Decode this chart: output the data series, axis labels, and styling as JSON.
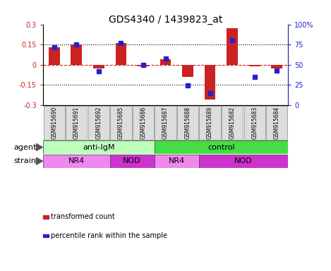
{
  "title": "GDS4340 / 1439823_at",
  "samples": [
    "GSM915690",
    "GSM915691",
    "GSM915692",
    "GSM915685",
    "GSM915686",
    "GSM915687",
    "GSM915688",
    "GSM915689",
    "GSM915682",
    "GSM915683",
    "GSM915684"
  ],
  "red_values": [
    0.13,
    0.15,
    -0.03,
    0.16,
    -0.01,
    0.04,
    -0.09,
    -0.26,
    0.27,
    -0.01,
    -0.03
  ],
  "blue_values": [
    72,
    75,
    42,
    77,
    50,
    58,
    24,
    15,
    80,
    35,
    43
  ],
  "ylim": [
    -0.3,
    0.3
  ],
  "y2lim": [
    0,
    100
  ],
  "yticks": [
    -0.3,
    -0.15,
    0,
    0.15,
    0.3
  ],
  "y2ticks": [
    0,
    25,
    50,
    75,
    100
  ],
  "ytick_labels": [
    "-0.3",
    "-0.15",
    "0",
    "0.15",
    "0.3"
  ],
  "y2tick_labels": [
    "0",
    "25",
    "50",
    "75",
    "100%"
  ],
  "red_color": "#cc2222",
  "blue_color": "#2222cc",
  "agent_groups": [
    {
      "label": "anti-IgM",
      "start": 0,
      "end": 5,
      "color": "#bbffbb"
    },
    {
      "label": "control",
      "start": 5,
      "end": 11,
      "color": "#44dd44"
    }
  ],
  "strain_groups": [
    {
      "label": "NR4",
      "start": 0,
      "end": 3,
      "color": "#ee88ee"
    },
    {
      "label": "NOD",
      "start": 3,
      "end": 5,
      "color": "#cc33cc"
    },
    {
      "label": "NR4",
      "start": 5,
      "end": 7,
      "color": "#ee88ee"
    },
    {
      "label": "NOD",
      "start": 7,
      "end": 11,
      "color": "#cc33cc"
    }
  ],
  "legend_items": [
    {
      "label": "transformed count",
      "color": "#cc2222"
    },
    {
      "label": "percentile rank within the sample",
      "color": "#2222cc"
    }
  ],
  "agent_label": "agent",
  "strain_label": "strain",
  "bar_width": 0.5,
  "blue_marker_size": 5,
  "title_fontsize": 10,
  "tick_fontsize": 7,
  "label_fontsize": 8,
  "sample_fontsize": 5.5
}
